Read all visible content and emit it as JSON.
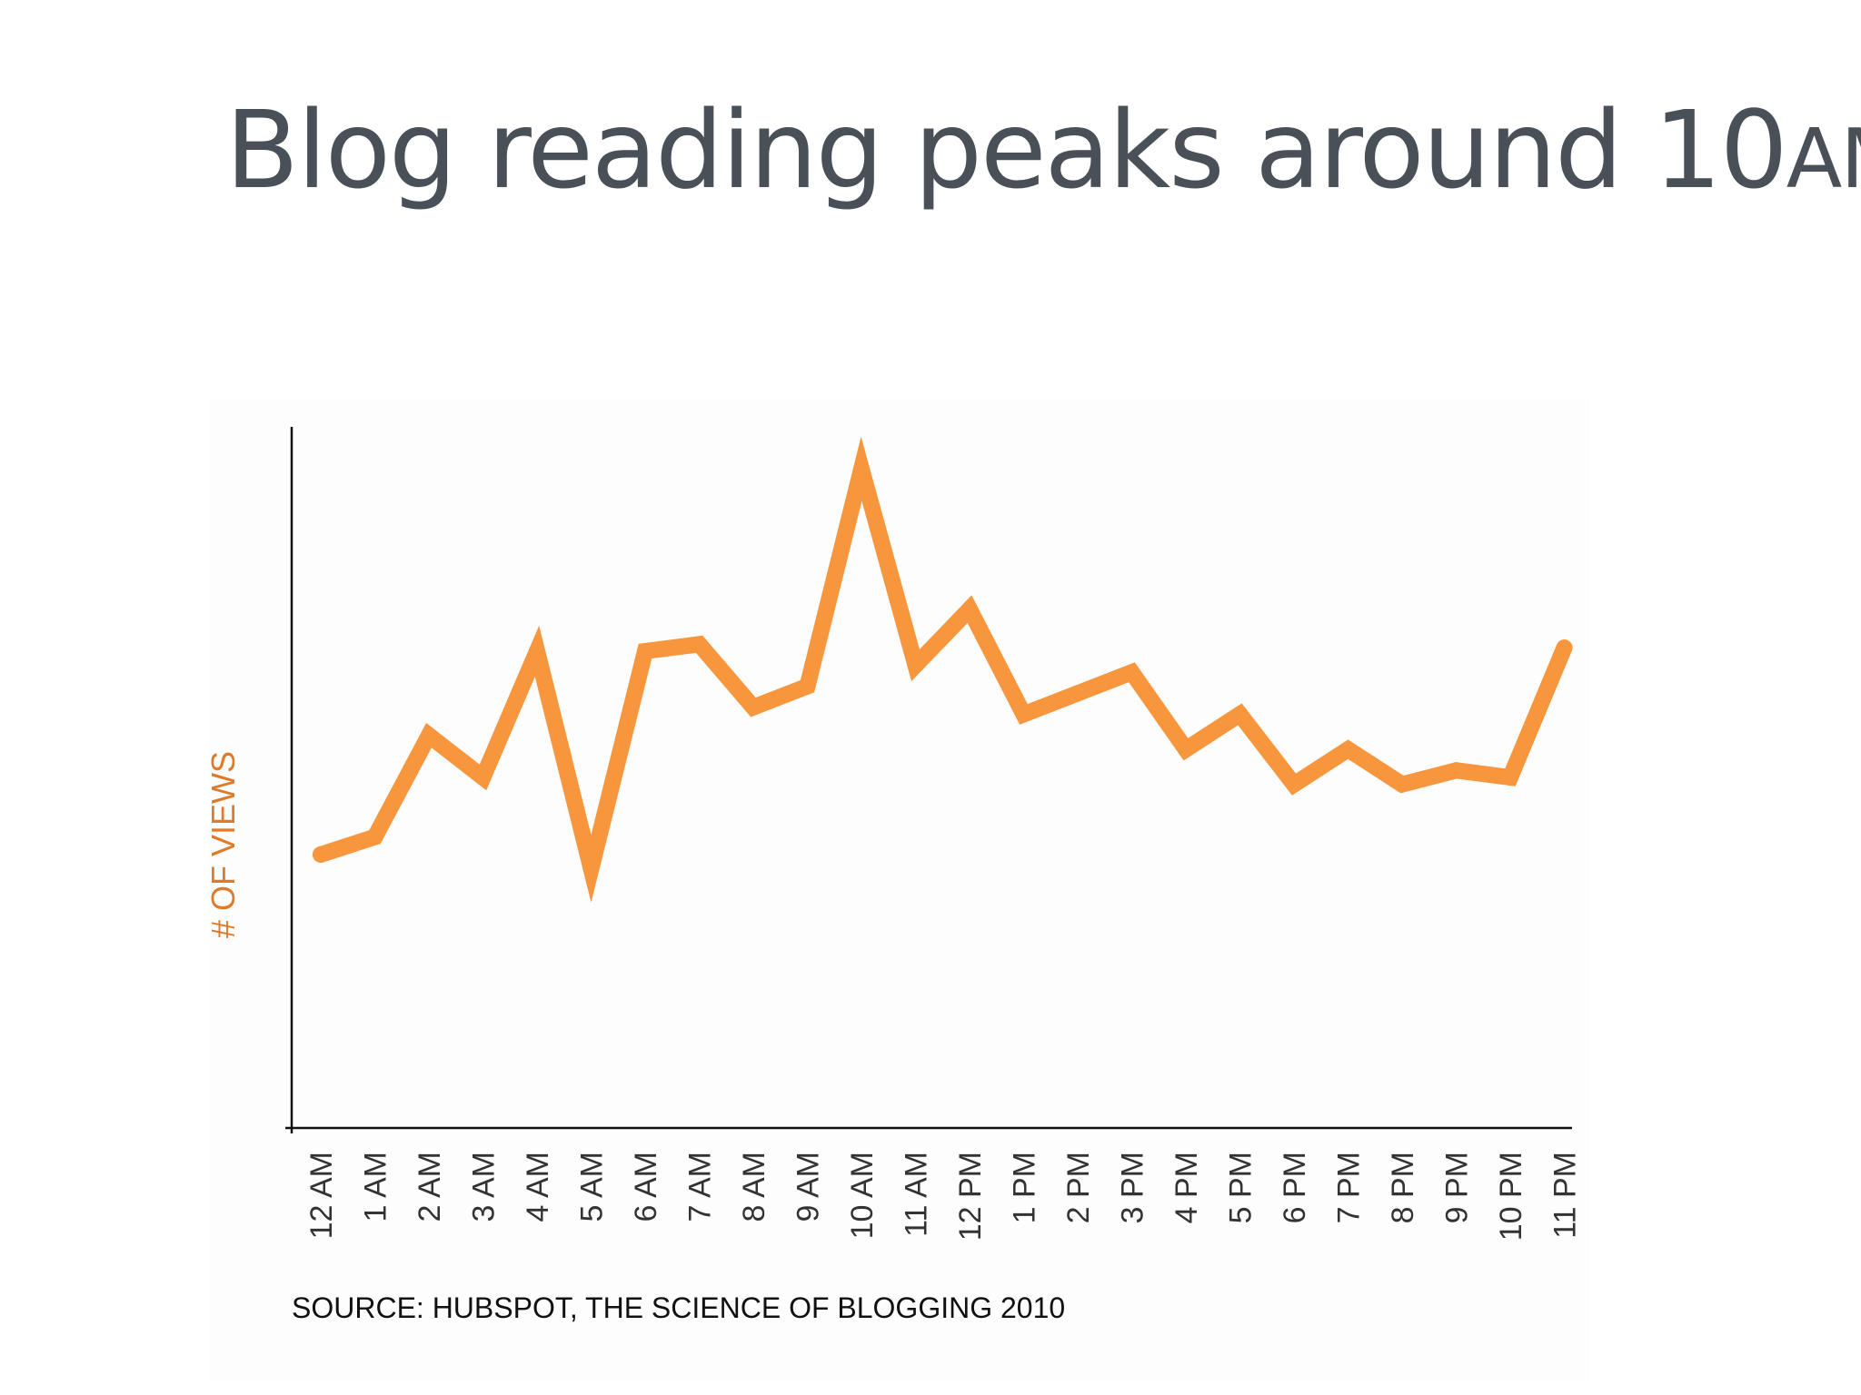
{
  "title": {
    "main": "Blog reading peaks around 10",
    "small_caps": "AM",
    "period": "."
  },
  "source": "SOURCE: HUBSPOT, THE SCIENCE OF BLOGGING 2010",
  "colors": {
    "line": "#f7963d",
    "ylabel": "#e07a2b",
    "axis": "#111111",
    "tick_text": "#333333",
    "title": "#4a5058"
  },
  "chart_data": {
    "type": "line",
    "xlabel": "",
    "ylabel": "# OF VIEWS",
    "categories": [
      "12 AM",
      "1 AM",
      "2 AM",
      "3 AM",
      "4 AM",
      "5 AM",
      "6 AM",
      "7 AM",
      "8 AM",
      "9 AM",
      "10 AM",
      "11 AM",
      "12 PM",
      "1 PM",
      "2 PM",
      "3 PM",
      "4 PM",
      "5 PM",
      "6 PM",
      "7 PM",
      "8 PM",
      "9 PM",
      "10 PM",
      "11 PM"
    ],
    "series": [
      {
        "values": [
          39,
          41.5,
          56,
          50,
          68,
          37,
          68,
          69,
          60,
          63,
          94,
          66,
          74,
          59,
          62,
          65,
          54,
          59,
          49,
          54,
          49,
          51,
          50,
          68.5
        ]
      }
    ],
    "ylim": [
      0,
      100
    ],
    "y_ticks_shown": false,
    "grid": false,
    "legend": "none"
  }
}
